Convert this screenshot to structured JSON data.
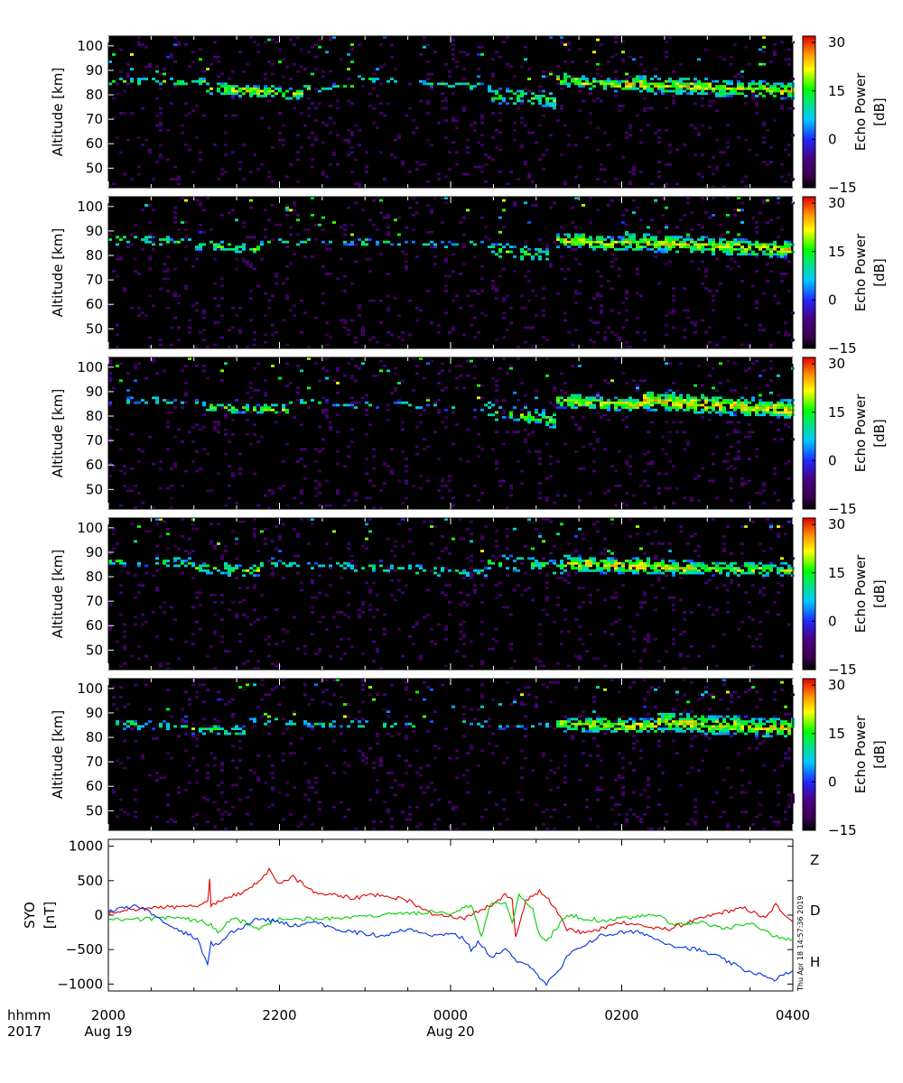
{
  "chart_data": [
    {
      "type": "heatmap",
      "ylabel": "Altitude [km]",
      "ylim": [
        42,
        104
      ],
      "yticks": [
        "50",
        "60",
        "70",
        "80",
        "90",
        "100"
      ],
      "colorbar": {
        "label_line1": "Echo Power",
        "label_line2": "[dB]",
        "range": [
          -15,
          32
        ],
        "ticks": [
          "−15",
          "0",
          "15",
          "30"
        ]
      },
      "layers": [
        {
          "t": [
            0.0,
            0.14
          ],
          "alt": [
            85,
            85
          ],
          "width": 2.0,
          "dens": 0.45
        },
        {
          "t": [
            0.14,
            0.28
          ],
          "alt": [
            82,
            80
          ],
          "width": 2.5,
          "dens": 0.75
        },
        {
          "t": [
            0.28,
            0.36
          ],
          "alt": [
            82,
            83
          ],
          "width": 1.5,
          "dens": 0.45
        },
        {
          "t": [
            0.36,
            0.55
          ],
          "alt": [
            86,
            83
          ],
          "width": 1.5,
          "dens": 0.35
        },
        {
          "t": [
            0.55,
            0.65
          ],
          "alt": [
            80,
            77
          ],
          "width": 3.5,
          "dens": 0.5
        },
        {
          "t": [
            0.65,
            0.75
          ],
          "alt": [
            86,
            83
          ],
          "width": 2.5,
          "dens": 0.8
        },
        {
          "t": [
            0.75,
            1.0
          ],
          "alt": [
            84,
            81
          ],
          "width": 3.5,
          "dens": 0.85
        }
      ]
    },
    {
      "type": "heatmap",
      "ylabel": "Altitude [km]",
      "ylim": [
        42,
        104
      ],
      "yticks": [
        "50",
        "60",
        "70",
        "80",
        "90",
        "100"
      ],
      "colorbar": {
        "label_line1": "Echo Power",
        "label_line2": "[dB]",
        "range": [
          -15,
          32
        ],
        "ticks": [
          "−15",
          "0",
          "15",
          "30"
        ]
      },
      "layers": [
        {
          "t": [
            0.0,
            0.12
          ],
          "alt": [
            86,
            85
          ],
          "width": 2.0,
          "dens": 0.4
        },
        {
          "t": [
            0.12,
            0.22
          ],
          "alt": [
            84,
            82
          ],
          "width": 2.0,
          "dens": 0.55
        },
        {
          "t": [
            0.22,
            0.55
          ],
          "alt": [
            85,
            84
          ],
          "width": 1.5,
          "dens": 0.25
        },
        {
          "t": [
            0.55,
            0.65
          ],
          "alt": [
            82,
            79
          ],
          "width": 3.0,
          "dens": 0.5
        },
        {
          "t": [
            0.65,
            0.75
          ],
          "alt": [
            86,
            84
          ],
          "width": 3.0,
          "dens": 0.8
        },
        {
          "t": [
            0.75,
            1.0
          ],
          "alt": [
            85,
            82
          ],
          "width": 3.5,
          "dens": 0.85
        }
      ]
    },
    {
      "type": "heatmap",
      "ylabel": "Altitude [km]",
      "ylim": [
        42,
        104
      ],
      "yticks": [
        "50",
        "60",
        "70",
        "80",
        "90",
        "100"
      ],
      "colorbar": {
        "label_line1": "Echo Power",
        "label_line2": "[dB]",
        "range": [
          -15,
          32
        ],
        "ticks": [
          "−15",
          "0",
          "15",
          "30"
        ]
      },
      "layers": [
        {
          "t": [
            0.0,
            0.14
          ],
          "alt": [
            86,
            85
          ],
          "width": 1.5,
          "dens": 0.3
        },
        {
          "t": [
            0.14,
            0.26
          ],
          "alt": [
            83,
            82
          ],
          "width": 2.0,
          "dens": 0.65
        },
        {
          "t": [
            0.26,
            0.4
          ],
          "alt": [
            85,
            84
          ],
          "width": 1.5,
          "dens": 0.3
        },
        {
          "t": [
            0.4,
            0.55
          ],
          "alt": [
            84,
            83
          ],
          "width": 1.5,
          "dens": 0.2
        },
        {
          "t": [
            0.55,
            0.65
          ],
          "alt": [
            82,
            78
          ],
          "width": 3.5,
          "dens": 0.55
        },
        {
          "t": [
            0.65,
            0.78
          ],
          "alt": [
            86,
            84
          ],
          "width": 3.0,
          "dens": 0.85
        },
        {
          "t": [
            0.78,
            1.0
          ],
          "alt": [
            86,
            82
          ],
          "width": 4.0,
          "dens": 0.9
        }
      ]
    },
    {
      "type": "heatmap",
      "ylabel": "Altitude [km]",
      "ylim": [
        42,
        104
      ],
      "yticks": [
        "50",
        "60",
        "70",
        "80",
        "90",
        "100"
      ],
      "colorbar": {
        "label_line1": "Echo Power",
        "label_line2": "[dB]",
        "range": [
          -15,
          32
        ],
        "ticks": [
          "−15",
          "0",
          "15",
          "30"
        ]
      },
      "layers": [
        {
          "t": [
            0.0,
            0.12
          ],
          "alt": [
            86,
            85
          ],
          "width": 2.0,
          "dens": 0.45
        },
        {
          "t": [
            0.12,
            0.22
          ],
          "alt": [
            83,
            82
          ],
          "width": 2.5,
          "dens": 0.6
        },
        {
          "t": [
            0.22,
            0.4
          ],
          "alt": [
            85,
            83
          ],
          "width": 1.5,
          "dens": 0.35
        },
        {
          "t": [
            0.4,
            0.55
          ],
          "alt": [
            83,
            81
          ],
          "width": 2.0,
          "dens": 0.3
        },
        {
          "t": [
            0.55,
            0.66
          ],
          "alt": [
            86,
            83
          ],
          "width": 3.0,
          "dens": 0.45
        },
        {
          "t": [
            0.66,
            0.85
          ],
          "alt": [
            85,
            83
          ],
          "width": 3.5,
          "dens": 0.85
        },
        {
          "t": [
            0.85,
            1.0
          ],
          "alt": [
            83,
            82
          ],
          "width": 3.0,
          "dens": 0.7
        }
      ]
    },
    {
      "type": "heatmap",
      "ylabel": "Altitude [km]",
      "ylim": [
        42,
        104
      ],
      "yticks": [
        "50",
        "60",
        "70",
        "80",
        "90",
        "100"
      ],
      "colorbar": {
        "label_line1": "Echo Power",
        "label_line2": "[dB]",
        "range": [
          -15,
          32
        ],
        "ticks": [
          "−15",
          "0",
          "15",
          "30"
        ]
      },
      "layers": [
        {
          "t": [
            0.0,
            0.12
          ],
          "alt": [
            85,
            84
          ],
          "width": 2.0,
          "dens": 0.4
        },
        {
          "t": [
            0.12,
            0.2
          ],
          "alt": [
            83,
            82
          ],
          "width": 2.0,
          "dens": 0.55
        },
        {
          "t": [
            0.2,
            0.45
          ],
          "alt": [
            86,
            84
          ],
          "width": 1.5,
          "dens": 0.3
        },
        {
          "t": [
            0.45,
            0.65
          ],
          "alt": [
            85,
            84
          ],
          "width": 1.5,
          "dens": 0.25
        },
        {
          "t": [
            0.65,
            0.8
          ],
          "alt": [
            85,
            84
          ],
          "width": 3.0,
          "dens": 0.85
        },
        {
          "t": [
            0.8,
            1.0
          ],
          "alt": [
            86,
            83
          ],
          "width": 4.0,
          "dens": 0.85
        }
      ]
    },
    {
      "type": "line",
      "ylabel_line1": "SYO",
      "ylabel_line2": "[nT]",
      "ylim": [
        -1100,
        1100
      ],
      "yticks": [
        {
          "v": 1000,
          "label": "1000"
        },
        {
          "v": 500,
          "label": "500"
        },
        {
          "v": 0,
          "label": "0"
        },
        {
          "v": -500,
          "label": "−500"
        },
        {
          "v": -1000,
          "label": "−1000"
        }
      ],
      "series": [
        {
          "name": "Z",
          "color": "#e00000",
          "points": [
            [
              0,
              20
            ],
            [
              0.03,
              80
            ],
            [
              0.08,
              110
            ],
            [
              0.13,
              130
            ],
            [
              0.145,
              200
            ],
            [
              0.148,
              500
            ],
            [
              0.15,
              150
            ],
            [
              0.17,
              250
            ],
            [
              0.19,
              300
            ],
            [
              0.22,
              500
            ],
            [
              0.235,
              650
            ],
            [
              0.25,
              450
            ],
            [
              0.27,
              550
            ],
            [
              0.3,
              350
            ],
            [
              0.32,
              300
            ],
            [
              0.36,
              250
            ],
            [
              0.4,
              300
            ],
            [
              0.44,
              200
            ],
            [
              0.47,
              30
            ],
            [
              0.5,
              -20
            ],
            [
              0.52,
              -50
            ],
            [
              0.54,
              50
            ],
            [
              0.56,
              150
            ],
            [
              0.58,
              300
            ],
            [
              0.59,
              250
            ],
            [
              0.595,
              -300
            ],
            [
              0.61,
              200
            ],
            [
              0.63,
              350
            ],
            [
              0.65,
              150
            ],
            [
              0.67,
              -200
            ],
            [
              0.69,
              -250
            ],
            [
              0.72,
              -200
            ],
            [
              0.75,
              -100
            ],
            [
              0.78,
              -150
            ],
            [
              0.8,
              -200
            ],
            [
              0.82,
              -200
            ],
            [
              0.85,
              -100
            ],
            [
              0.9,
              50
            ],
            [
              0.93,
              100
            ],
            [
              0.96,
              -50
            ],
            [
              0.975,
              150
            ],
            [
              1.0,
              -100
            ]
          ]
        },
        {
          "name": "D",
          "color": "#00d000",
          "points": [
            [
              0,
              -50
            ],
            [
              0.05,
              -60
            ],
            [
              0.1,
              -30
            ],
            [
              0.14,
              -100
            ],
            [
              0.15,
              -150
            ],
            [
              0.16,
              -250
            ],
            [
              0.18,
              -50
            ],
            [
              0.2,
              -100
            ],
            [
              0.22,
              -200
            ],
            [
              0.25,
              -50
            ],
            [
              0.3,
              -50
            ],
            [
              0.35,
              -50
            ],
            [
              0.4,
              0
            ],
            [
              0.45,
              30
            ],
            [
              0.47,
              50
            ],
            [
              0.5,
              0
            ],
            [
              0.52,
              100
            ],
            [
              0.53,
              150
            ],
            [
              0.545,
              -300
            ],
            [
              0.56,
              200
            ],
            [
              0.58,
              180
            ],
            [
              0.59,
              -100
            ],
            [
              0.6,
              300
            ],
            [
              0.62,
              100
            ],
            [
              0.63,
              -300
            ],
            [
              0.64,
              -400
            ],
            [
              0.65,
              -250
            ],
            [
              0.67,
              0
            ],
            [
              0.7,
              -50
            ],
            [
              0.72,
              -80
            ],
            [
              0.75,
              -50
            ],
            [
              0.8,
              0
            ],
            [
              0.83,
              -150
            ],
            [
              0.86,
              -100
            ],
            [
              0.9,
              -200
            ],
            [
              0.94,
              -100
            ],
            [
              0.97,
              -300
            ],
            [
              1.0,
              -350
            ]
          ]
        },
        {
          "name": "H",
          "color": "#0030e0",
          "points": [
            [
              0,
              50
            ],
            [
              0.02,
              100
            ],
            [
              0.04,
              120
            ],
            [
              0.06,
              50
            ],
            [
              0.1,
              -200
            ],
            [
              0.13,
              -350
            ],
            [
              0.145,
              -700
            ],
            [
              0.15,
              -400
            ],
            [
              0.16,
              -450
            ],
            [
              0.18,
              -250
            ],
            [
              0.2,
              -150
            ],
            [
              0.22,
              -50
            ],
            [
              0.25,
              -100
            ],
            [
              0.27,
              -150
            ],
            [
              0.3,
              -100
            ],
            [
              0.33,
              -200
            ],
            [
              0.36,
              -250
            ],
            [
              0.4,
              -300
            ],
            [
              0.44,
              -200
            ],
            [
              0.48,
              -300
            ],
            [
              0.5,
              -250
            ],
            [
              0.52,
              -350
            ],
            [
              0.53,
              -500
            ],
            [
              0.54,
              -400
            ],
            [
              0.56,
              -600
            ],
            [
              0.58,
              -500
            ],
            [
              0.6,
              -700
            ],
            [
              0.62,
              -750
            ],
            [
              0.63,
              -900
            ],
            [
              0.64,
              -1000
            ],
            [
              0.66,
              -800
            ],
            [
              0.67,
              -600
            ],
            [
              0.7,
              -400
            ],
            [
              0.72,
              -300
            ],
            [
              0.75,
              -250
            ],
            [
              0.78,
              -250
            ],
            [
              0.8,
              -350
            ],
            [
              0.83,
              -450
            ],
            [
              0.86,
              -500
            ],
            [
              0.89,
              -600
            ],
            [
              0.91,
              -700
            ],
            [
              0.93,
              -800
            ],
            [
              0.95,
              -850
            ],
            [
              0.97,
              -950
            ],
            [
              1.0,
              -800
            ]
          ]
        }
      ]
    }
  ],
  "time_axis": {
    "row1_label": "hhmm",
    "row2_label": "2017",
    "ticks": [
      {
        "t": 0.0,
        "time": "2000",
        "date": "Aug 19"
      },
      {
        "t": 0.5,
        "time": "0000",
        "date": "Aug 20"
      },
      {
        "t": 0.25,
        "time": "2200",
        "date": ""
      },
      {
        "t": 0.75,
        "time": "0200",
        "date": ""
      },
      {
        "t": 1.0,
        "time": "0400",
        "date": ""
      }
    ]
  },
  "timestamp": "Thu Apr 18 14:57:36 2019"
}
